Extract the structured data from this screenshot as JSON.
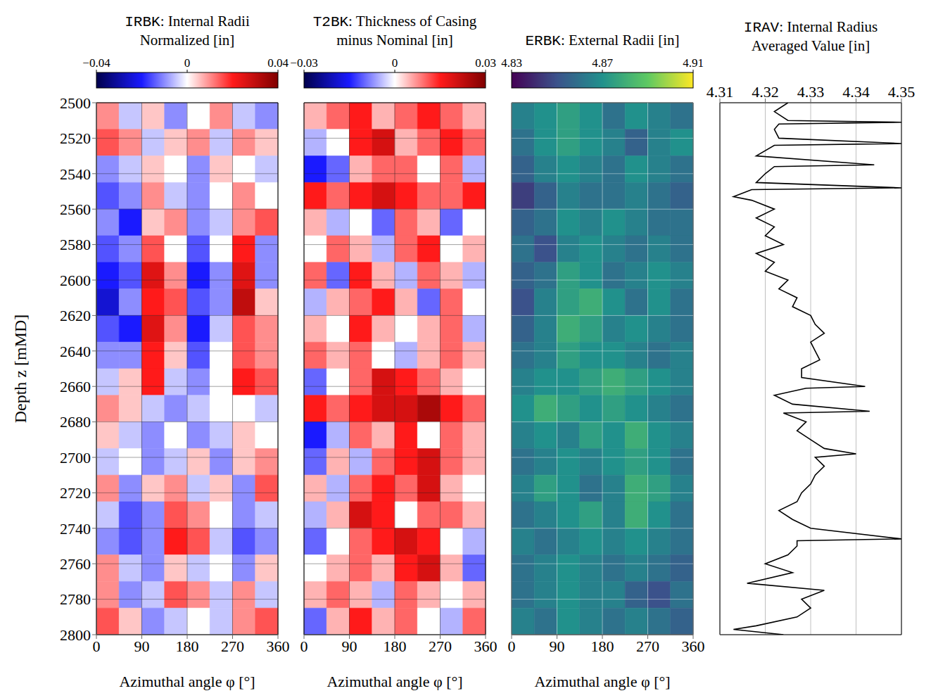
{
  "chart_data": [
    {
      "type": "heatmap",
      "title": "IRBK: Internal Radii Normalized [in]",
      "x_label": "Azimuthal angle φ [°]",
      "y_label": "Depth z [mMD]",
      "xlim": [
        0,
        360
      ],
      "xticks": [
        0,
        90,
        180,
        270,
        360
      ],
      "ylim": [
        2500,
        2800
      ],
      "yticks": [
        2500,
        2520,
        2540,
        2560,
        2580,
        2600,
        2620,
        2640,
        2660,
        2680,
        2700,
        2720,
        2740,
        2760,
        2780,
        2800
      ],
      "grid": true,
      "x_edges": [
        0,
        45,
        90,
        135,
        180,
        225,
        270,
        315,
        360
      ],
      "y_edges": [
        2500,
        2515,
        2530,
        2545,
        2560,
        2575,
        2590,
        2605,
        2620,
        2635,
        2650,
        2665,
        2680,
        2695,
        2710,
        2725,
        2740,
        2755,
        2770,
        2785,
        2800
      ],
      "cells": [
        [
          0.01,
          -0.005,
          0.005,
          -0.01,
          0.0,
          0.01,
          -0.005,
          -0.01
        ],
        [
          0.015,
          0.01,
          -0.005,
          0.005,
          0.01,
          -0.005,
          0.01,
          0.005
        ],
        [
          -0.01,
          -0.005,
          0.005,
          0.0,
          -0.01,
          0.005,
          0.0,
          -0.005
        ],
        [
          -0.015,
          -0.01,
          0.01,
          -0.005,
          -0.01,
          0.0,
          0.01,
          0.0
        ],
        [
          -0.01,
          -0.02,
          0.005,
          0.01,
          -0.01,
          -0.005,
          0.01,
          0.015
        ],
        [
          -0.015,
          -0.01,
          0.015,
          0.0,
          -0.015,
          0.0,
          0.02,
          -0.01
        ],
        [
          -0.02,
          -0.015,
          0.025,
          0.01,
          -0.02,
          -0.01,
          0.025,
          -0.01
        ],
        [
          -0.025,
          -0.01,
          0.02,
          0.015,
          -0.015,
          -0.01,
          0.03,
          0.005
        ],
        [
          -0.015,
          -0.02,
          0.025,
          0.01,
          -0.02,
          -0.005,
          0.015,
          0.01
        ],
        [
          -0.01,
          -0.01,
          0.02,
          0.005,
          -0.015,
          0.0,
          0.015,
          0.01
        ],
        [
          -0.005,
          0.005,
          0.02,
          -0.005,
          -0.01,
          0.0,
          0.02,
          0.015
        ],
        [
          0.01,
          0.005,
          -0.005,
          -0.01,
          -0.005,
          0.0,
          0.0,
          -0.005
        ],
        [
          0.005,
          -0.005,
          -0.01,
          0.0,
          -0.01,
          -0.005,
          0.005,
          0.0
        ],
        [
          -0.005,
          0.0,
          -0.01,
          -0.005,
          0.005,
          -0.01,
          0.005,
          0.01
        ],
        [
          0.01,
          -0.01,
          0.005,
          0.01,
          -0.005,
          0.005,
          -0.01,
          0.015
        ],
        [
          -0.005,
          -0.015,
          -0.01,
          0.015,
          0.01,
          0.0,
          -0.01,
          -0.005
        ],
        [
          -0.01,
          -0.015,
          -0.01,
          0.02,
          0.015,
          -0.005,
          -0.015,
          -0.01
        ],
        [
          0.01,
          -0.005,
          -0.01,
          0.005,
          -0.005,
          0.0,
          -0.01,
          0.005
        ],
        [
          0.01,
          -0.01,
          -0.005,
          0.015,
          0.01,
          -0.005,
          0.01,
          -0.005
        ],
        [
          0.015,
          0.005,
          -0.01,
          -0.005,
          0.0,
          -0.005,
          0.01,
          0.015
        ]
      ],
      "colorbar": {
        "range": [
          -0.04,
          0.04
        ],
        "ticks": [
          {
            "value": -0.04,
            "label": "−0.04"
          },
          0,
          0.04
        ]
      }
    },
    {
      "type": "heatmap",
      "title": "T2BK: Thickness of Casing minus Nominal [in]",
      "x_label": "Azimuthal angle φ [°]",
      "xlim": [
        0,
        360
      ],
      "xticks": [
        0,
        90,
        180,
        270,
        360
      ],
      "ylim": [
        2500,
        2800
      ],
      "yticks": [
        2500,
        2520,
        2540,
        2560,
        2580,
        2600,
        2620,
        2640,
        2660,
        2680,
        2700,
        2720,
        2740,
        2760,
        2780,
        2800
      ],
      "grid": true,
      "tick_labels": "x",
      "x_edges": [
        0,
        45,
        90,
        135,
        180,
        225,
        270,
        315,
        360
      ],
      "y_edges": [
        2500,
        2515,
        2530,
        2545,
        2560,
        2575,
        2590,
        2605,
        2620,
        2635,
        2650,
        2665,
        2680,
        2695,
        2710,
        2725,
        2740,
        2755,
        2770,
        2785,
        2800
      ],
      "cells": [
        [
          0.005,
          0.01,
          0.015,
          0.005,
          0.01,
          0.015,
          0.01,
          0.005
        ],
        [
          -0.005,
          0.0,
          0.015,
          0.02,
          0.005,
          0.01,
          0.015,
          0.01
        ],
        [
          -0.015,
          -0.01,
          0.005,
          0.01,
          0.01,
          0.0,
          0.01,
          -0.005
        ],
        [
          0.015,
          0.01,
          0.015,
          0.02,
          0.015,
          0.01,
          0.01,
          0.015
        ],
        [
          0.005,
          -0.005,
          0.0,
          -0.01,
          0.01,
          0.005,
          -0.01,
          0.0
        ],
        [
          0.0,
          0.01,
          0.005,
          -0.005,
          0.01,
          0.015,
          0.0,
          0.005
        ],
        [
          0.01,
          -0.01,
          0.015,
          0.005,
          -0.005,
          0.01,
          0.005,
          -0.005
        ],
        [
          -0.005,
          0.005,
          0.01,
          0.015,
          0.005,
          -0.01,
          0.01,
          0.0
        ],
        [
          0.005,
          0.0,
          0.015,
          0.005,
          0.0,
          0.005,
          0.01,
          -0.005
        ],
        [
          0.01,
          0.005,
          0.01,
          0.0,
          -0.005,
          0.005,
          0.01,
          0.005
        ],
        [
          -0.01,
          0.0,
          0.01,
          0.02,
          0.015,
          0.01,
          0.005,
          0.0
        ],
        [
          0.015,
          0.01,
          0.015,
          0.02,
          0.02,
          0.025,
          0.015,
          0.01
        ],
        [
          -0.015,
          -0.005,
          0.01,
          0.005,
          0.015,
          0.0,
          0.01,
          0.005
        ],
        [
          -0.01,
          0.005,
          -0.005,
          0.01,
          0.015,
          0.02,
          0.01,
          0.005
        ],
        [
          0.005,
          -0.005,
          0.01,
          0.015,
          0.01,
          0.02,
          0.005,
          0.0
        ],
        [
          -0.005,
          0.005,
          0.02,
          0.015,
          0.0,
          0.01,
          0.01,
          0.005
        ],
        [
          -0.01,
          0.0,
          0.01,
          0.015,
          0.02,
          0.015,
          0.0,
          -0.005
        ],
        [
          0.0,
          0.005,
          0.01,
          0.005,
          0.015,
          0.02,
          0.005,
          -0.01
        ],
        [
          0.005,
          0.01,
          0.005,
          -0.005,
          0.01,
          0.005,
          0.0,
          0.005
        ],
        [
          -0.01,
          0.005,
          0.015,
          0.005,
          0.01,
          0.0,
          -0.005,
          0.01
        ]
      ],
      "colorbar": {
        "range": [
          -0.03,
          0.03
        ],
        "ticks": [
          {
            "value": -0.03,
            "label": "−0.03"
          },
          0,
          0.03
        ]
      }
    },
    {
      "type": "heatmap",
      "title": "ERBK: External Radii [in]",
      "x_label": "Azimuthal angle φ [°]",
      "xlim": [
        0,
        360
      ],
      "xticks": [
        0,
        90,
        180,
        270,
        360
      ],
      "ylim": [
        2500,
        2800
      ],
      "yticks": [
        2500,
        2520,
        2540,
        2560,
        2580,
        2600,
        2620,
        2640,
        2660,
        2680,
        2700,
        2720,
        2740,
        2760,
        2780,
        2800
      ],
      "grid": true,
      "tick_labels": "x",
      "x_edges": [
        0,
        45,
        90,
        135,
        180,
        225,
        270,
        315,
        360
      ],
      "y_edges": [
        2500,
        2515,
        2530,
        2545,
        2560,
        2575,
        2590,
        2605,
        2620,
        2635,
        2650,
        2665,
        2680,
        2695,
        2710,
        2725,
        2740,
        2755,
        2770,
        2785,
        2800
      ],
      "cells": [
        [
          4.865,
          4.87,
          4.875,
          4.87,
          4.86,
          4.87,
          4.865,
          4.86
        ],
        [
          4.86,
          4.87,
          4.875,
          4.87,
          4.865,
          4.855,
          4.865,
          4.87
        ],
        [
          4.855,
          4.865,
          4.87,
          4.865,
          4.86,
          4.87,
          4.865,
          4.86
        ],
        [
          4.845,
          4.855,
          4.865,
          4.86,
          4.86,
          4.865,
          4.86,
          4.855
        ],
        [
          4.855,
          4.86,
          4.87,
          4.865,
          4.87,
          4.865,
          4.86,
          4.86
        ],
        [
          4.86,
          4.85,
          4.865,
          4.87,
          4.865,
          4.86,
          4.865,
          4.86
        ],
        [
          4.855,
          4.86,
          4.875,
          4.87,
          4.86,
          4.865,
          4.87,
          4.865
        ],
        [
          4.85,
          4.865,
          4.875,
          4.88,
          4.87,
          4.86,
          4.87,
          4.86
        ],
        [
          4.855,
          4.865,
          4.88,
          4.875,
          4.865,
          4.87,
          4.865,
          4.86
        ],
        [
          4.86,
          4.865,
          4.875,
          4.87,
          4.87,
          4.865,
          4.86,
          4.865
        ],
        [
          4.865,
          4.87,
          4.87,
          4.875,
          4.88,
          4.875,
          4.87,
          4.865
        ],
        [
          4.87,
          4.88,
          4.875,
          4.87,
          4.875,
          4.87,
          4.865,
          4.86
        ],
        [
          4.865,
          4.87,
          4.865,
          4.875,
          4.87,
          4.88,
          4.87,
          4.865
        ],
        [
          4.86,
          4.865,
          4.87,
          4.865,
          4.87,
          4.875,
          4.87,
          4.86
        ],
        [
          4.865,
          4.875,
          4.87,
          4.86,
          4.865,
          4.88,
          4.875,
          4.865
        ],
        [
          4.86,
          4.865,
          4.87,
          4.875,
          4.865,
          4.88,
          4.87,
          4.86
        ],
        [
          4.865,
          4.86,
          4.865,
          4.87,
          4.865,
          4.87,
          4.865,
          4.86
        ],
        [
          4.86,
          4.865,
          4.87,
          4.865,
          4.86,
          4.865,
          4.86,
          4.855
        ],
        [
          4.86,
          4.865,
          4.87,
          4.865,
          4.865,
          4.855,
          4.85,
          4.86
        ],
        [
          4.865,
          4.86,
          4.87,
          4.865,
          4.86,
          4.865,
          4.86,
          4.855
        ]
      ],
      "colorbar": {
        "range": [
          4.83,
          4.91
        ],
        "ticks": [
          4.83,
          4.87,
          4.91
        ]
      }
    },
    {
      "type": "line",
      "title": "IRAV: Internal Radius Averaged Value [in]",
      "color": "#000000",
      "xlim": [
        4.31,
        4.35
      ],
      "xticks": [
        4.31,
        4.32,
        4.33,
        4.34,
        4.35
      ],
      "ylim": [
        2500,
        2800
      ],
      "yticks": [
        2500,
        2520,
        2540,
        2560,
        2580,
        2600,
        2620,
        2640,
        2660,
        2680,
        2700,
        2720,
        2740,
        2760,
        2780,
        2800
      ],
      "grid": true,
      "tick_labels": "x",
      "y": [
        2500,
        2505,
        2510,
        2511,
        2512,
        2515,
        2520,
        2523,
        2524,
        2530,
        2535,
        2536,
        2540,
        2545,
        2548,
        2549,
        2553,
        2555,
        2560,
        2565,
        2570,
        2575,
        2580,
        2585,
        2590,
        2595,
        2600,
        2605,
        2610,
        2615,
        2620,
        2625,
        2630,
        2635,
        2640,
        2645,
        2650,
        2655,
        2660,
        2661,
        2665,
        2670,
        2674,
        2675,
        2680,
        2685,
        2690,
        2695,
        2698,
        2700,
        2705,
        2710,
        2715,
        2720,
        2725,
        2730,
        2735,
        2740,
        2746,
        2747,
        2750,
        2755,
        2760,
        2765,
        2771,
        2775,
        2780,
        2785,
        2790,
        2795,
        2797,
        2800
      ],
      "x": [
        4.325,
        4.322,
        4.325,
        4.35,
        4.323,
        4.322,
        4.323,
        4.35,
        4.322,
        4.318,
        4.344,
        4.322,
        4.32,
        4.318,
        4.35,
        4.317,
        4.313,
        4.317,
        4.322,
        4.318,
        4.322,
        4.32,
        4.324,
        4.318,
        4.322,
        4.32,
        4.325,
        4.323,
        4.327,
        4.326,
        4.33,
        4.331,
        4.333,
        4.33,
        4.331,
        4.332,
        4.328,
        4.328,
        4.342,
        4.329,
        4.322,
        4.326,
        4.343,
        4.324,
        4.329,
        4.327,
        4.33,
        4.333,
        4.34,
        4.331,
        4.333,
        4.331,
        4.33,
        4.328,
        4.327,
        4.323,
        4.326,
        4.33,
        4.35,
        4.327,
        4.327,
        4.325,
        4.32,
        4.326,
        4.316,
        4.333,
        4.328,
        4.33,
        4.327,
        4.318,
        4.313,
        4.324
      ]
    }
  ]
}
